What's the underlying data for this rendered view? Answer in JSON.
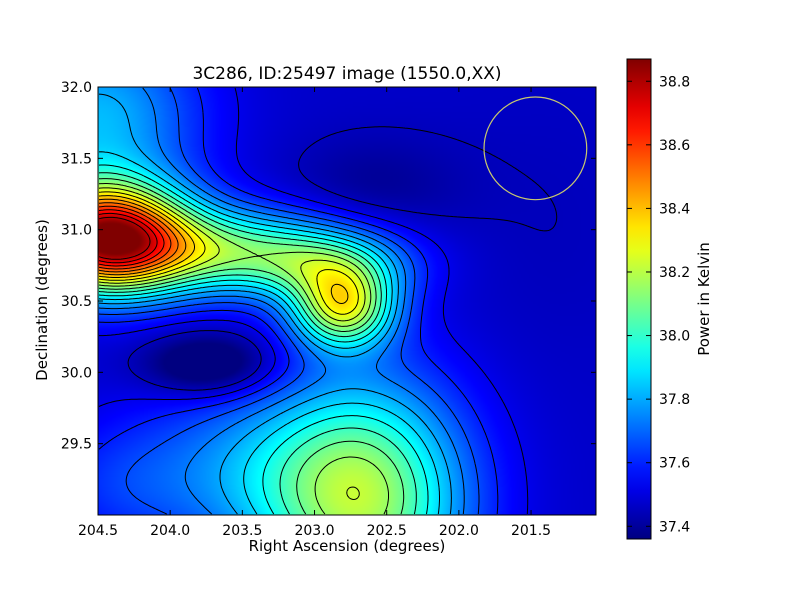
{
  "chart_data": {
    "type": "heatmap",
    "title": "3C286, ID:25497 image (1550.0,XX)",
    "xlabel": "Right Ascension (degrees)",
    "ylabel": "Declination (degrees)",
    "xlim": [
      204.5,
      201.05
    ],
    "ylim": [
      29.0,
      32.0
    ],
    "x_ticks": [
      "204.5",
      "204.0",
      "203.5",
      "203.0",
      "202.5",
      "202.0",
      "201.5"
    ],
    "x_tick_values": [
      204.5,
      204.0,
      203.5,
      203.0,
      202.5,
      202.0,
      201.5
    ],
    "y_ticks": [
      "29.5",
      "30.0",
      "30.5",
      "31.0",
      "31.5",
      "32.0"
    ],
    "y_tick_values": [
      29.5,
      30.0,
      30.5,
      31.0,
      31.5,
      32.0
    ],
    "colorbar": {
      "label": "Power in Kelvin",
      "min": 37.36,
      "max": 38.87,
      "ticks": [
        "37.4",
        "37.6",
        "37.8",
        "38.0",
        "38.2",
        "38.4",
        "38.6",
        "38.8"
      ],
      "tick_values": [
        37.4,
        37.6,
        37.8,
        38.0,
        38.2,
        38.4,
        38.6,
        38.8
      ],
      "colormap": "jet"
    },
    "features": [
      {
        "type": "maximum",
        "ra": 204.45,
        "dec": 30.95,
        "value": 38.85
      },
      {
        "type": "maximum",
        "ra": 202.8,
        "dec": 30.43,
        "value": 38.6
      },
      {
        "type": "minimum",
        "ra": 203.72,
        "dec": 30.05,
        "value": 37.4
      },
      {
        "type": "minimum",
        "ra": 202.6,
        "dec": 31.3,
        "value": 37.42
      }
    ],
    "beam": {
      "ra": 201.47,
      "dec": 31.57,
      "radius_deg": 0.36,
      "color": "#c8c86e"
    },
    "contours": true,
    "grid": false
  }
}
